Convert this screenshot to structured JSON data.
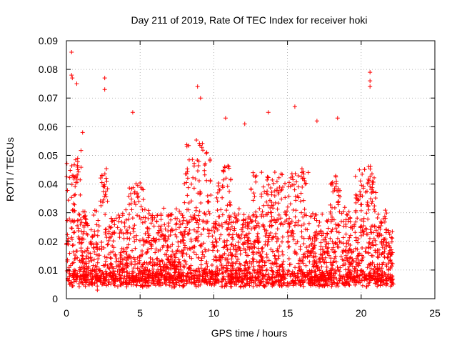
{
  "chart_data": {
    "type": "scatter",
    "title": "Day 211 of 2019, Rate Of TEC Index for receiver hoki",
    "xlabel": "GPS time / hours",
    "ylabel": "ROTI / TECUs",
    "xlim": [
      0,
      25
    ],
    "ylim": [
      0,
      0.09
    ],
    "xticks": [
      0,
      5,
      10,
      15,
      20,
      25
    ],
    "yticks": [
      0,
      0.01,
      0.02,
      0.03,
      0.04,
      0.05,
      0.06,
      0.07,
      0.08,
      0.09
    ],
    "xtick_labels": [
      "0",
      "5",
      "10",
      "15",
      "20",
      "25"
    ],
    "ytick_labels": [
      "0",
      "0.01",
      "0.02",
      "0.03",
      "0.04",
      "0.05",
      "0.06",
      "0.07",
      "0.08",
      "0.09"
    ],
    "grid": true,
    "grid_style": "dotted",
    "marker": "+",
    "color": "#ff0000",
    "data_range_x": [
      0,
      22.2
    ],
    "notable_points": [
      {
        "x": 0.35,
        "y": 0.086
      },
      {
        "x": 0.35,
        "y": 0.078
      },
      {
        "x": 0.4,
        "y": 0.077
      },
      {
        "x": 0.7,
        "y": 0.075
      },
      {
        "x": 2.6,
        "y": 0.077
      },
      {
        "x": 2.6,
        "y": 0.073
      },
      {
        "x": 8.9,
        "y": 0.074
      },
      {
        "x": 9.1,
        "y": 0.07
      },
      {
        "x": 20.6,
        "y": 0.079
      },
      {
        "x": 20.6,
        "y": 0.076
      },
      {
        "x": 20.6,
        "y": 0.074
      },
      {
        "x": 4.5,
        "y": 0.065
      },
      {
        "x": 13.7,
        "y": 0.065
      },
      {
        "x": 15.5,
        "y": 0.067
      },
      {
        "x": 18.4,
        "y": 0.063
      },
      {
        "x": 1.1,
        "y": 0.058
      },
      {
        "x": 10.8,
        "y": 0.063
      },
      {
        "x": 12.1,
        "y": 0.061
      },
      {
        "x": 17.0,
        "y": 0.062
      },
      {
        "x": 7.3,
        "y": 0.004
      },
      {
        "x": 2.1,
        "y": 0.003
      }
    ]
  }
}
